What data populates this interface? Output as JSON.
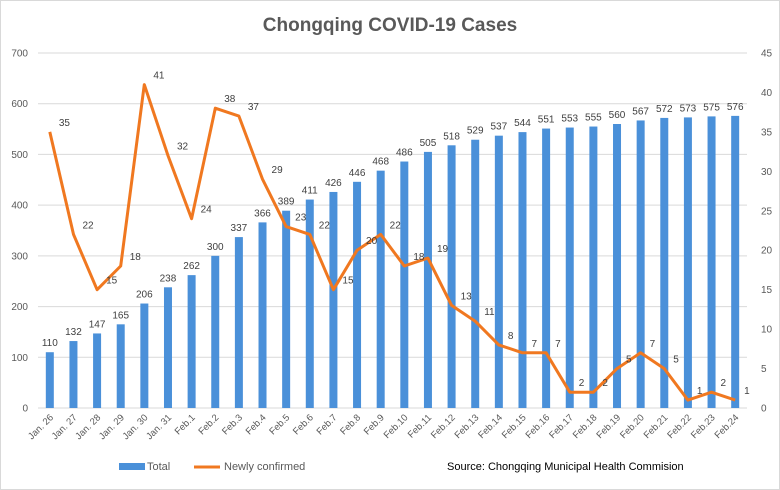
{
  "chart_data": {
    "type": "bar",
    "title": "Chongqing  COVID-19 Cases",
    "categories": [
      "Jan. 26",
      "Jan. 27",
      "Jan. 28",
      "Jan. 29",
      "Jan. 30",
      "Jan. 31",
      "Feb.1",
      "Feb.2",
      "Feb.3",
      "Feb.4",
      "Feb.5",
      "Feb.6",
      "Feb.7",
      "Feb.8",
      "Feb.9",
      "Feb.10",
      "Feb.11",
      "Feb.12",
      "Feb.13",
      "Feb.14",
      "Feb.15",
      "Feb.16",
      "Feb.17",
      "Feb.18",
      "Feb.19",
      "Feb.20",
      "Feb.21",
      "Feb.22",
      "Feb.23",
      "Feb.24"
    ],
    "series": [
      {
        "name": "Total",
        "type": "bar",
        "axis": "left",
        "color": "#4a90d9",
        "values": [
          110,
          132,
          147,
          165,
          206,
          238,
          262,
          300,
          337,
          366,
          389,
          411,
          426,
          446,
          468,
          486,
          505,
          518,
          529,
          537,
          544,
          551,
          553,
          555,
          560,
          567,
          572,
          573,
          575,
          576
        ]
      },
      {
        "name": "Newly confirmed",
        "type": "line",
        "axis": "right",
        "color": "#f07820",
        "values": [
          35,
          22,
          15,
          18,
          41,
          32,
          24,
          38,
          37,
          29,
          23,
          22,
          15,
          20,
          22,
          18,
          19,
          13,
          11,
          8,
          7,
          7,
          2,
          2,
          5,
          7,
          5,
          1,
          2,
          1
        ]
      }
    ],
    "y_left": {
      "min": 0,
      "max": 700,
      "ticks": [
        0,
        100,
        200,
        300,
        400,
        500,
        600,
        700
      ]
    },
    "y_right": {
      "min": 0,
      "max": 45,
      "ticks": [
        0,
        5,
        10,
        15,
        20,
        25,
        30,
        35,
        40,
        45
      ]
    },
    "grid": true,
    "legend_position": "bottom-left",
    "annotation": "Source: Chongqing Municipal Health Commision"
  }
}
